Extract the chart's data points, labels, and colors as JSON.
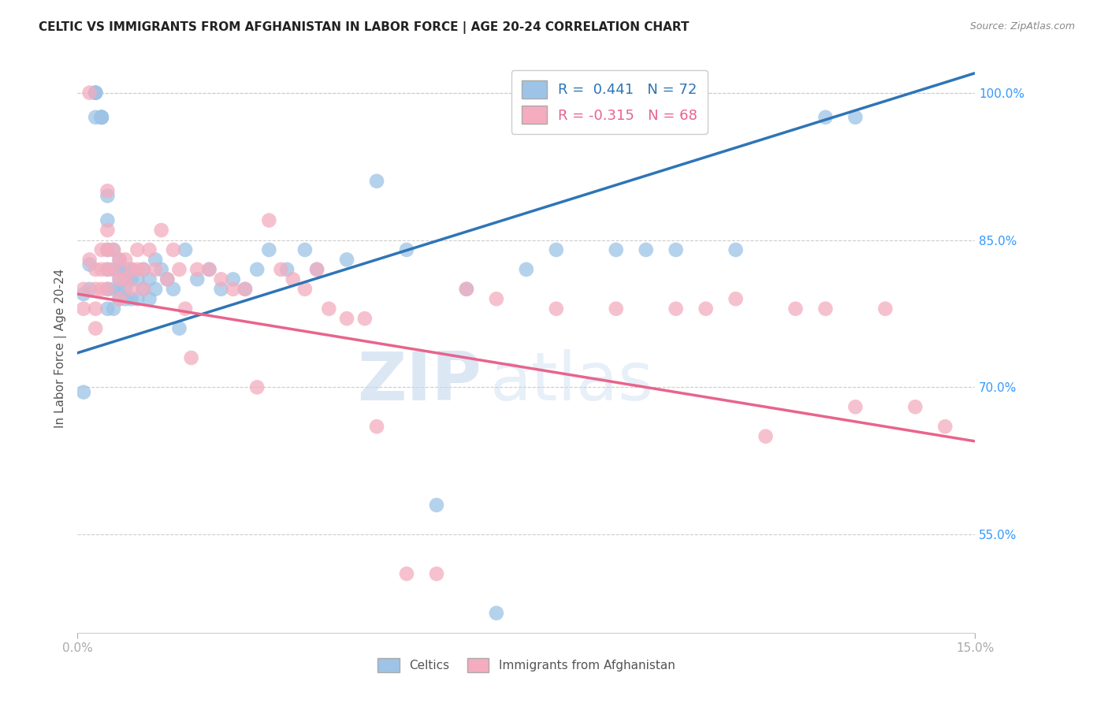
{
  "title": "CELTIC VS IMMIGRANTS FROM AFGHANISTAN IN LABOR FORCE | AGE 20-24 CORRELATION CHART",
  "source": "Source: ZipAtlas.com",
  "ylabel": "In Labor Force | Age 20-24",
  "xlim": [
    0.0,
    0.15
  ],
  "ylim": [
    0.45,
    1.03
  ],
  "xticks": [
    0.0,
    0.15
  ],
  "xticklabels": [
    "0.0%",
    "15.0%"
  ],
  "yticks": [
    0.55,
    0.7,
    0.85,
    1.0
  ],
  "yticklabels": [
    "55.0%",
    "70.0%",
    "85.0%",
    "100.0%"
  ],
  "R_blue": 0.441,
  "N_blue": 72,
  "R_pink": -0.315,
  "N_pink": 68,
  "blue_color": "#9DC3E6",
  "pink_color": "#F4ACBE",
  "blue_line_color": "#2E75B6",
  "pink_line_color": "#E8648C",
  "legend_label_blue": "Celtics",
  "legend_label_pink": "Immigrants from Afghanistan",
  "watermark_zip": "ZIP",
  "watermark_atlas": "atlas",
  "blue_scatter_x": [
    0.001,
    0.001,
    0.002,
    0.002,
    0.003,
    0.003,
    0.003,
    0.003,
    0.004,
    0.004,
    0.004,
    0.004,
    0.004,
    0.005,
    0.005,
    0.005,
    0.005,
    0.005,
    0.005,
    0.006,
    0.006,
    0.006,
    0.006,
    0.007,
    0.007,
    0.007,
    0.007,
    0.007,
    0.008,
    0.008,
    0.008,
    0.008,
    0.009,
    0.009,
    0.009,
    0.01,
    0.01,
    0.011,
    0.011,
    0.012,
    0.012,
    0.013,
    0.013,
    0.014,
    0.015,
    0.016,
    0.017,
    0.018,
    0.02,
    0.022,
    0.024,
    0.026,
    0.028,
    0.03,
    0.032,
    0.035,
    0.038,
    0.04,
    0.045,
    0.05,
    0.055,
    0.06,
    0.065,
    0.07,
    0.075,
    0.08,
    0.09,
    0.095,
    0.1,
    0.11,
    0.125,
    0.13
  ],
  "blue_scatter_y": [
    0.795,
    0.695,
    0.8,
    0.825,
    1.0,
    1.0,
    1.0,
    0.975,
    0.975,
    0.975,
    0.975,
    0.975,
    0.975,
    0.895,
    0.87,
    0.84,
    0.82,
    0.8,
    0.78,
    0.84,
    0.82,
    0.8,
    0.78,
    0.83,
    0.82,
    0.81,
    0.8,
    0.79,
    0.82,
    0.81,
    0.8,
    0.79,
    0.82,
    0.81,
    0.79,
    0.81,
    0.79,
    0.82,
    0.8,
    0.81,
    0.79,
    0.83,
    0.8,
    0.82,
    0.81,
    0.8,
    0.76,
    0.84,
    0.81,
    0.82,
    0.8,
    0.81,
    0.8,
    0.82,
    0.84,
    0.82,
    0.84,
    0.82,
    0.83,
    0.91,
    0.84,
    0.58,
    0.8,
    0.47,
    0.82,
    0.84,
    0.84,
    0.84,
    0.84,
    0.84,
    0.975,
    0.975
  ],
  "pink_scatter_x": [
    0.001,
    0.001,
    0.002,
    0.002,
    0.003,
    0.003,
    0.003,
    0.003,
    0.004,
    0.004,
    0.004,
    0.005,
    0.005,
    0.005,
    0.005,
    0.005,
    0.006,
    0.006,
    0.007,
    0.007,
    0.007,
    0.008,
    0.008,
    0.009,
    0.009,
    0.01,
    0.01,
    0.011,
    0.011,
    0.012,
    0.013,
    0.014,
    0.015,
    0.016,
    0.017,
    0.018,
    0.019,
    0.02,
    0.022,
    0.024,
    0.026,
    0.028,
    0.03,
    0.032,
    0.034,
    0.036,
    0.038,
    0.04,
    0.042,
    0.045,
    0.048,
    0.05,
    0.055,
    0.06,
    0.065,
    0.07,
    0.08,
    0.09,
    0.1,
    0.105,
    0.11,
    0.115,
    0.12,
    0.125,
    0.13,
    0.135,
    0.14,
    0.145
  ],
  "pink_scatter_y": [
    0.8,
    0.78,
    1.0,
    0.83,
    0.82,
    0.8,
    0.78,
    0.76,
    0.84,
    0.82,
    0.8,
    0.9,
    0.86,
    0.84,
    0.82,
    0.8,
    0.84,
    0.82,
    0.83,
    0.81,
    0.79,
    0.83,
    0.81,
    0.82,
    0.8,
    0.84,
    0.82,
    0.82,
    0.8,
    0.84,
    0.82,
    0.86,
    0.81,
    0.84,
    0.82,
    0.78,
    0.73,
    0.82,
    0.82,
    0.81,
    0.8,
    0.8,
    0.7,
    0.87,
    0.82,
    0.81,
    0.8,
    0.82,
    0.78,
    0.77,
    0.77,
    0.66,
    0.51,
    0.51,
    0.8,
    0.79,
    0.78,
    0.78,
    0.78,
    0.78,
    0.79,
    0.65,
    0.78,
    0.78,
    0.68,
    0.78,
    0.68,
    0.66
  ],
  "blue_trend_x": [
    0.0,
    0.15
  ],
  "blue_trend_y": [
    0.735,
    1.02
  ],
  "pink_trend_x": [
    0.0,
    0.15
  ],
  "pink_trend_y": [
    0.795,
    0.645
  ]
}
